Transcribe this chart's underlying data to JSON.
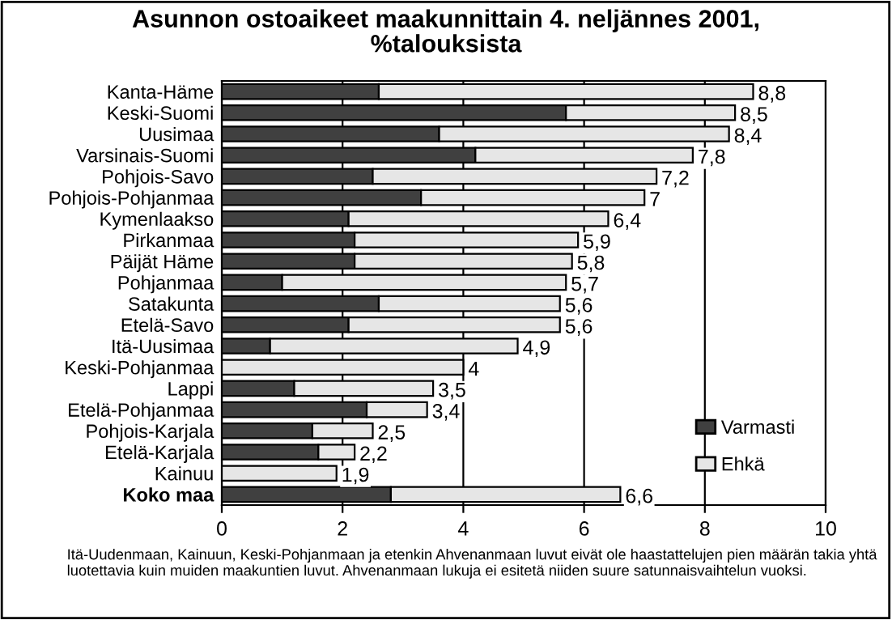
{
  "chart_data": {
    "type": "bar",
    "orientation": "horizontal",
    "stacked": true,
    "title": "Asunnon ostoaikeet maakunnittain 4. neljännes 2001,\n%talouksista",
    "categories": [
      "Kanta-Häme",
      "Keski-Suomi",
      "Uusimaa",
      "Varsinais-Suomi",
      "Pohjois-Savo",
      "Pohjois-Pohjanmaa",
      "Kymenlaakso",
      "Pirkanmaa",
      "Päijät Häme",
      "Pohjanmaa",
      "Satakunta",
      "Etelä-Savo",
      "Itä-Uusimaa",
      "Keski-Pohjanmaa",
      "Lappi",
      "Etelä-Pohjanmaa",
      "Pohjois-Karjala",
      "Etelä-Karjala",
      "Kainuu",
      "Koko maa"
    ],
    "series": [
      {
        "name": "Varmasti",
        "color": "#404040",
        "values": [
          2.6,
          5.7,
          3.6,
          4.2,
          2.5,
          3.3,
          2.1,
          2.2,
          2.2,
          1.0,
          2.6,
          2.1,
          0.8,
          0,
          1.2,
          2.4,
          1.5,
          1.6,
          0,
          2.8
        ]
      },
      {
        "name": "Ehkä",
        "color": "#e6e6e6",
        "values": [
          6.2,
          2.8,
          4.8,
          3.6,
          4.7,
          3.7,
          4.3,
          3.7,
          3.6,
          4.7,
          3.0,
          3.5,
          4.1,
          4,
          2.3,
          1.0,
          1.0,
          0.6,
          1.9,
          3.8
        ]
      }
    ],
    "totals": [
      "8,8",
      "8,5",
      "8,4",
      "7,8",
      "7,2",
      "7",
      "6,4",
      "5,9",
      "5,8",
      "5,7",
      "5,6",
      "5,6",
      "4,9",
      "4",
      "3,5",
      "3,4",
      "2,5",
      "2,2",
      "1,9",
      "6,6"
    ],
    "xlim": [
      0,
      10
    ],
    "xticks": [
      0,
      2,
      4,
      6,
      8,
      10
    ],
    "grid": "x",
    "legend": "bottom right",
    "annotations": [
      "Itä-Uudenmaan, Kainuun, Keski-Pohjanmaan ja etenkin Ahvenanmaan luvut eivät ole haastattelujen pien määrän takia yhtä luotettavia kuin muiden maakuntien luvut. Ahvenanmaan lukuja ei esitetä niiden suure satunnaisvaihtelun vuoksi."
    ]
  }
}
